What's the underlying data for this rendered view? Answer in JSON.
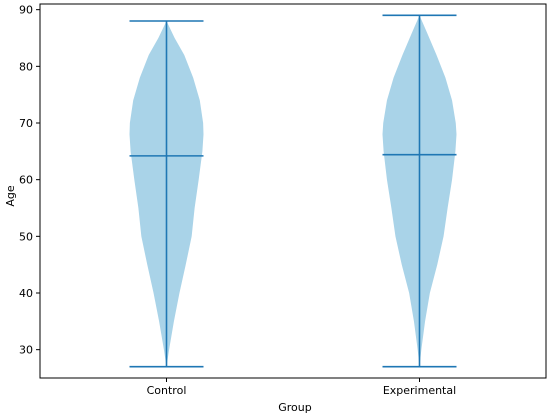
{
  "chart_data": {
    "type": "violin",
    "title": "",
    "xlabel": "Group",
    "ylabel": "Age",
    "categories": [
      "Control",
      "Experimental"
    ],
    "ylim": [
      25,
      91
    ],
    "yticks": [
      30,
      40,
      50,
      60,
      70,
      80,
      90
    ],
    "grid": false,
    "legend": "none",
    "colors": {
      "fill": "#a9d3e8",
      "line": "#1f77b4",
      "axis": "#000000"
    },
    "series": [
      {
        "category": "Control",
        "min": 27,
        "max": 88,
        "mean": 64.2,
        "density": [
          [
            27,
            0.0
          ],
          [
            30,
            0.07
          ],
          [
            35,
            0.2
          ],
          [
            40,
            0.35
          ],
          [
            45,
            0.52
          ],
          [
            50,
            0.68
          ],
          [
            55,
            0.76
          ],
          [
            60,
            0.87
          ],
          [
            65,
            0.97
          ],
          [
            68,
            1.0
          ],
          [
            70,
            0.99
          ],
          [
            74,
            0.9
          ],
          [
            78,
            0.72
          ],
          [
            82,
            0.48
          ],
          [
            85,
            0.22
          ],
          [
            88,
            0.0
          ]
        ]
      },
      {
        "category": "Experimental",
        "min": 27,
        "max": 89,
        "mean": 64.4,
        "density": [
          [
            27,
            0.0
          ],
          [
            30,
            0.05
          ],
          [
            35,
            0.15
          ],
          [
            40,
            0.28
          ],
          [
            45,
            0.48
          ],
          [
            50,
            0.65
          ],
          [
            55,
            0.76
          ],
          [
            60,
            0.88
          ],
          [
            65,
            0.97
          ],
          [
            68,
            1.0
          ],
          [
            70,
            0.98
          ],
          [
            74,
            0.88
          ],
          [
            78,
            0.7
          ],
          [
            82,
            0.46
          ],
          [
            86,
            0.2
          ],
          [
            89,
            0.0
          ]
        ]
      }
    ]
  }
}
